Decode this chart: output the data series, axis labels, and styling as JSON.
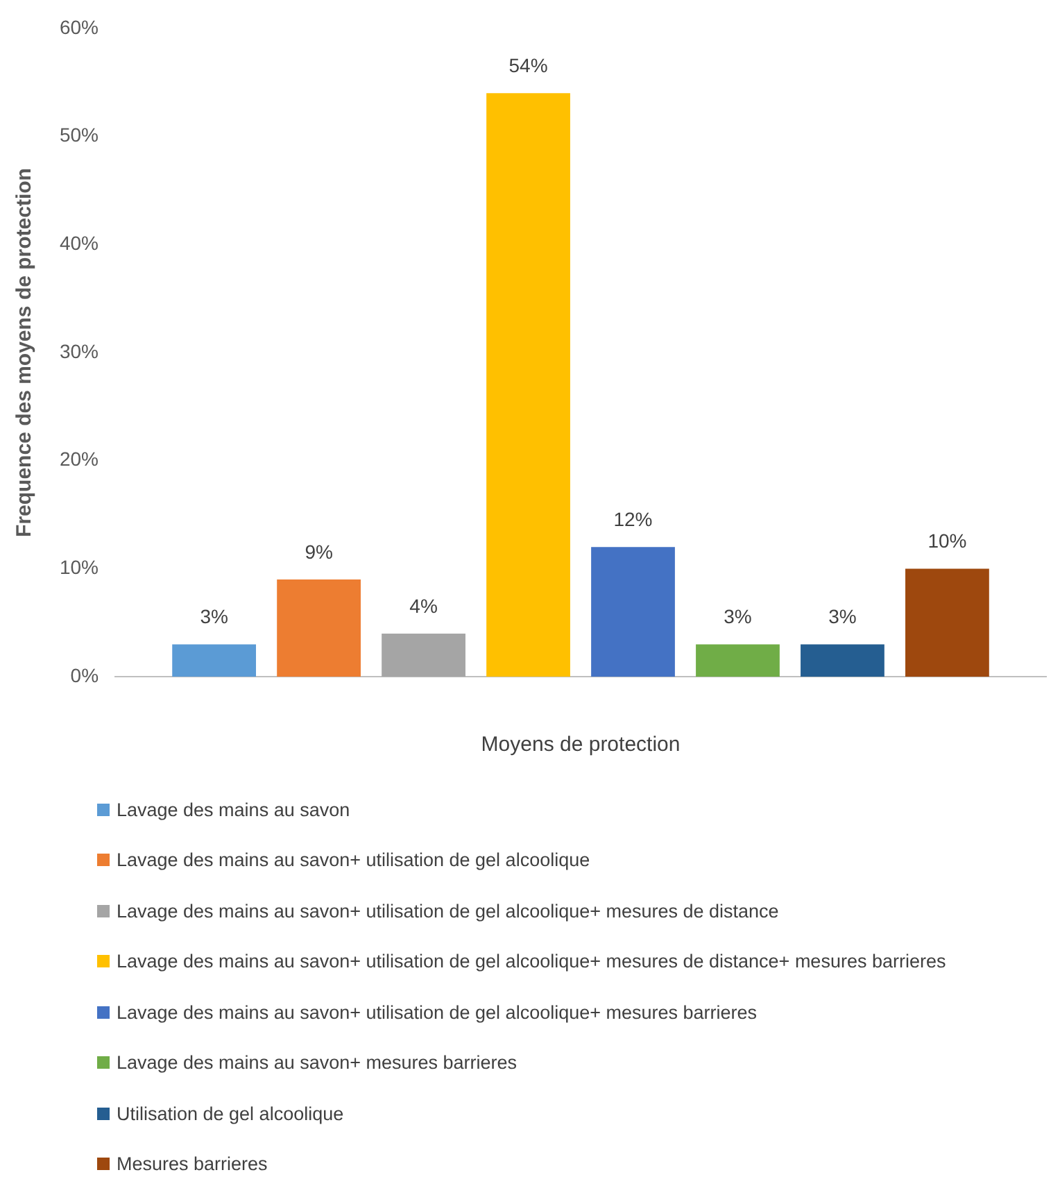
{
  "chart_data": {
    "type": "bar",
    "ylabel": "Frequence des moyens de protection",
    "xlabel": "Moyens de protection",
    "categories": [
      null
    ],
    "ylim": [
      0,
      60
    ],
    "yticks": [
      {
        "value": 0,
        "label": "0%"
      },
      {
        "value": 10,
        "label": "10%"
      },
      {
        "value": 20,
        "label": "20%"
      },
      {
        "value": 30,
        "label": "30%"
      },
      {
        "value": 40,
        "label": "40%"
      },
      {
        "value": 50,
        "label": "50%"
      },
      {
        "value": 60,
        "label": "60%"
      }
    ],
    "grid": false,
    "legend": "bottom",
    "series": [
      {
        "name": "Lavage des mains au savon",
        "color": "#5b9bd5",
        "values": [
          3
        ],
        "value_labels": [
          "3%"
        ]
      },
      {
        "name": "Lavage des mains au savon+ utilisation de gel alcoolique",
        "color": "#ed7d31",
        "values": [
          9
        ],
        "value_labels": [
          "9%"
        ]
      },
      {
        "name": "Lavage des mains au savon+ utilisation de gel alcoolique+ mesures de distance",
        "color": "#a5a5a5",
        "values": [
          4
        ],
        "value_labels": [
          "4%"
        ]
      },
      {
        "name": "Lavage des mains au savon+ utilisation de gel alcoolique+ mesures de distance+ mesures barrieres",
        "color": "#ffc000",
        "values": [
          54
        ],
        "value_labels": [
          "54%"
        ]
      },
      {
        "name": "Lavage des mains au savon+ utilisation de gel alcoolique+ mesures barrieres",
        "color": "#4472c4",
        "values": [
          12
        ],
        "value_labels": [
          "12%"
        ]
      },
      {
        "name": "Lavage des mains au savon+ mesures barrieres",
        "color": "#70ad47",
        "values": [
          3
        ],
        "value_labels": [
          "3%"
        ]
      },
      {
        "name": "Utilisation de gel alcoolique",
        "color": "#255e91",
        "values": [
          3
        ],
        "value_labels": [
          "3%"
        ]
      },
      {
        "name": "Mesures barrieres",
        "color": "#9e480e",
        "values": [
          10
        ],
        "value_labels": [
          "10%"
        ]
      }
    ]
  }
}
